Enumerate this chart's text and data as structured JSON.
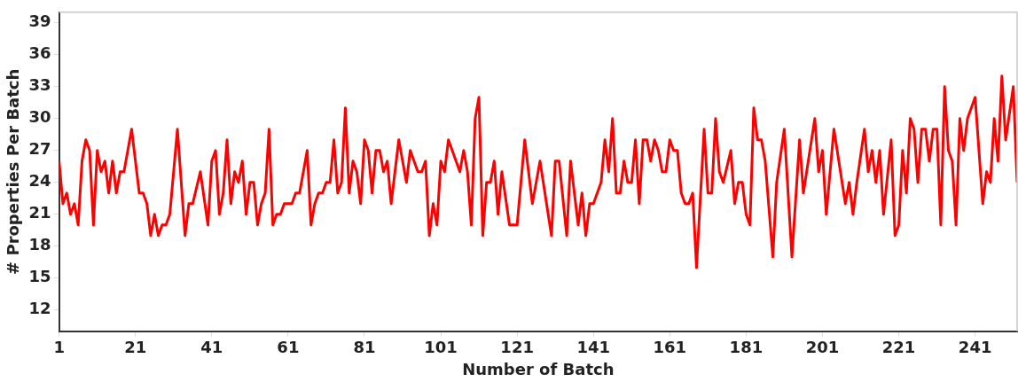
{
  "chart_data": {
    "type": "line",
    "xlabel": "Number of Batch",
    "ylabel": "# Properties Per Batch",
    "x": [
      1,
      2,
      3,
      4,
      5,
      6,
      7,
      8,
      9,
      10,
      11,
      12,
      13,
      14,
      15,
      16,
      17,
      18,
      20,
      22,
      23,
      24,
      25,
      26,
      27,
      28,
      29,
      30,
      32,
      34,
      35,
      36,
      38,
      40,
      41,
      42,
      43,
      44,
      45,
      46,
      47,
      48,
      49,
      50,
      51,
      52,
      53,
      54,
      55,
      56,
      57,
      58,
      59,
      60,
      62,
      63,
      64,
      66,
      67,
      68,
      69,
      70,
      71,
      72,
      73,
      74,
      75,
      76,
      77,
      78,
      79,
      80,
      81,
      82,
      83,
      84,
      85,
      86,
      87,
      88,
      89,
      90,
      91,
      92,
      93,
      94,
      95,
      96,
      97,
      98,
      99,
      100,
      101,
      102,
      103,
      104,
      105,
      106,
      107,
      108,
      109,
      110,
      111,
      112,
      113,
      114,
      115,
      116,
      117,
      119,
      121,
      123,
      125,
      127,
      130,
      131,
      132,
      134,
      135,
      137,
      138,
      139,
      140,
      141,
      143,
      144,
      145,
      146,
      147,
      148,
      149,
      150,
      151,
      152,
      153,
      154,
      155,
      156,
      157,
      158,
      159,
      160,
      161,
      162,
      163,
      164,
      165,
      166,
      167,
      168,
      170,
      171,
      172,
      173,
      174,
      175,
      177,
      178,
      179,
      180,
      181,
      182,
      183,
      184,
      185,
      186,
      188,
      189,
      191,
      193,
      195,
      196,
      199,
      200,
      201,
      202,
      204,
      207,
      208,
      209,
      210,
      212,
      213,
      214,
      215,
      216,
      217,
      219,
      220,
      221,
      222,
      223,
      224,
      225,
      226,
      227,
      228,
      229,
      230,
      231,
      232,
      233,
      234,
      235,
      236,
      237,
      238,
      239,
      241,
      243,
      244,
      245,
      246,
      247,
      248,
      249,
      251,
      252
    ],
    "series": [
      {
        "color": "#ff0000",
        "values": [
          26,
          22,
          23,
          21,
          22,
          20,
          26,
          28,
          27,
          20,
          27,
          25,
          26,
          23,
          26,
          23,
          25,
          25,
          29,
          23,
          23,
          22,
          19,
          21,
          19,
          20,
          20,
          21,
          29,
          19,
          22,
          22,
          25,
          20,
          26,
          27,
          21,
          23,
          28,
          22,
          25,
          24,
          26,
          21,
          24,
          24,
          20,
          22,
          23,
          29,
          20,
          21,
          21,
          22,
          22,
          23,
          23,
          27,
          20,
          22,
          23,
          23,
          24,
          24,
          28,
          23,
          24,
          31,
          23,
          26,
          25,
          22,
          28,
          27,
          23,
          27,
          27,
          25,
          26,
          22,
          25,
          28,
          26,
          24,
          27,
          26,
          25,
          25,
          26,
          19,
          22,
          20,
          26,
          25,
          28,
          27,
          26,
          25,
          27,
          25,
          20,
          30,
          32,
          19,
          24,
          24,
          26,
          21,
          25,
          20,
          20,
          28,
          22,
          26,
          19,
          26,
          26,
          19,
          26,
          20,
          23,
          19,
          22,
          22,
          24,
          28,
          25,
          30,
          23,
          23,
          26,
          24,
          24,
          28,
          22,
          28,
          28,
          26,
          28,
          27,
          25,
          25,
          28,
          27,
          27,
          23,
          22,
          22,
          23,
          16,
          29,
          23,
          23,
          30,
          25,
          24,
          27,
          22,
          24,
          24,
          21,
          20,
          31,
          28,
          28,
          26,
          17,
          24,
          29,
          17,
          28,
          23,
          30,
          25,
          27,
          21,
          29,
          22,
          24,
          21,
          24,
          29,
          25,
          27,
          24,
          27,
          21,
          28,
          19,
          20,
          27,
          23,
          30,
          29,
          24,
          29,
          29,
          26,
          29,
          29,
          20,
          33,
          27,
          26,
          20,
          30,
          27,
          30,
          32,
          22,
          25,
          24,
          30,
          26,
          34,
          28,
          33,
          24
        ]
      }
    ],
    "xlim": [
      1,
      252
    ],
    "xticks": [
      1,
      21,
      41,
      61,
      81,
      101,
      121,
      141,
      161,
      181,
      201,
      221,
      241
    ],
    "ylim": [
      10,
      40
    ],
    "yticks": [
      12,
      15,
      18,
      21,
      24,
      27,
      30,
      33,
      36,
      39
    ],
    "grid": false,
    "legend": false,
    "marker": "none",
    "line_style": "solid"
  }
}
